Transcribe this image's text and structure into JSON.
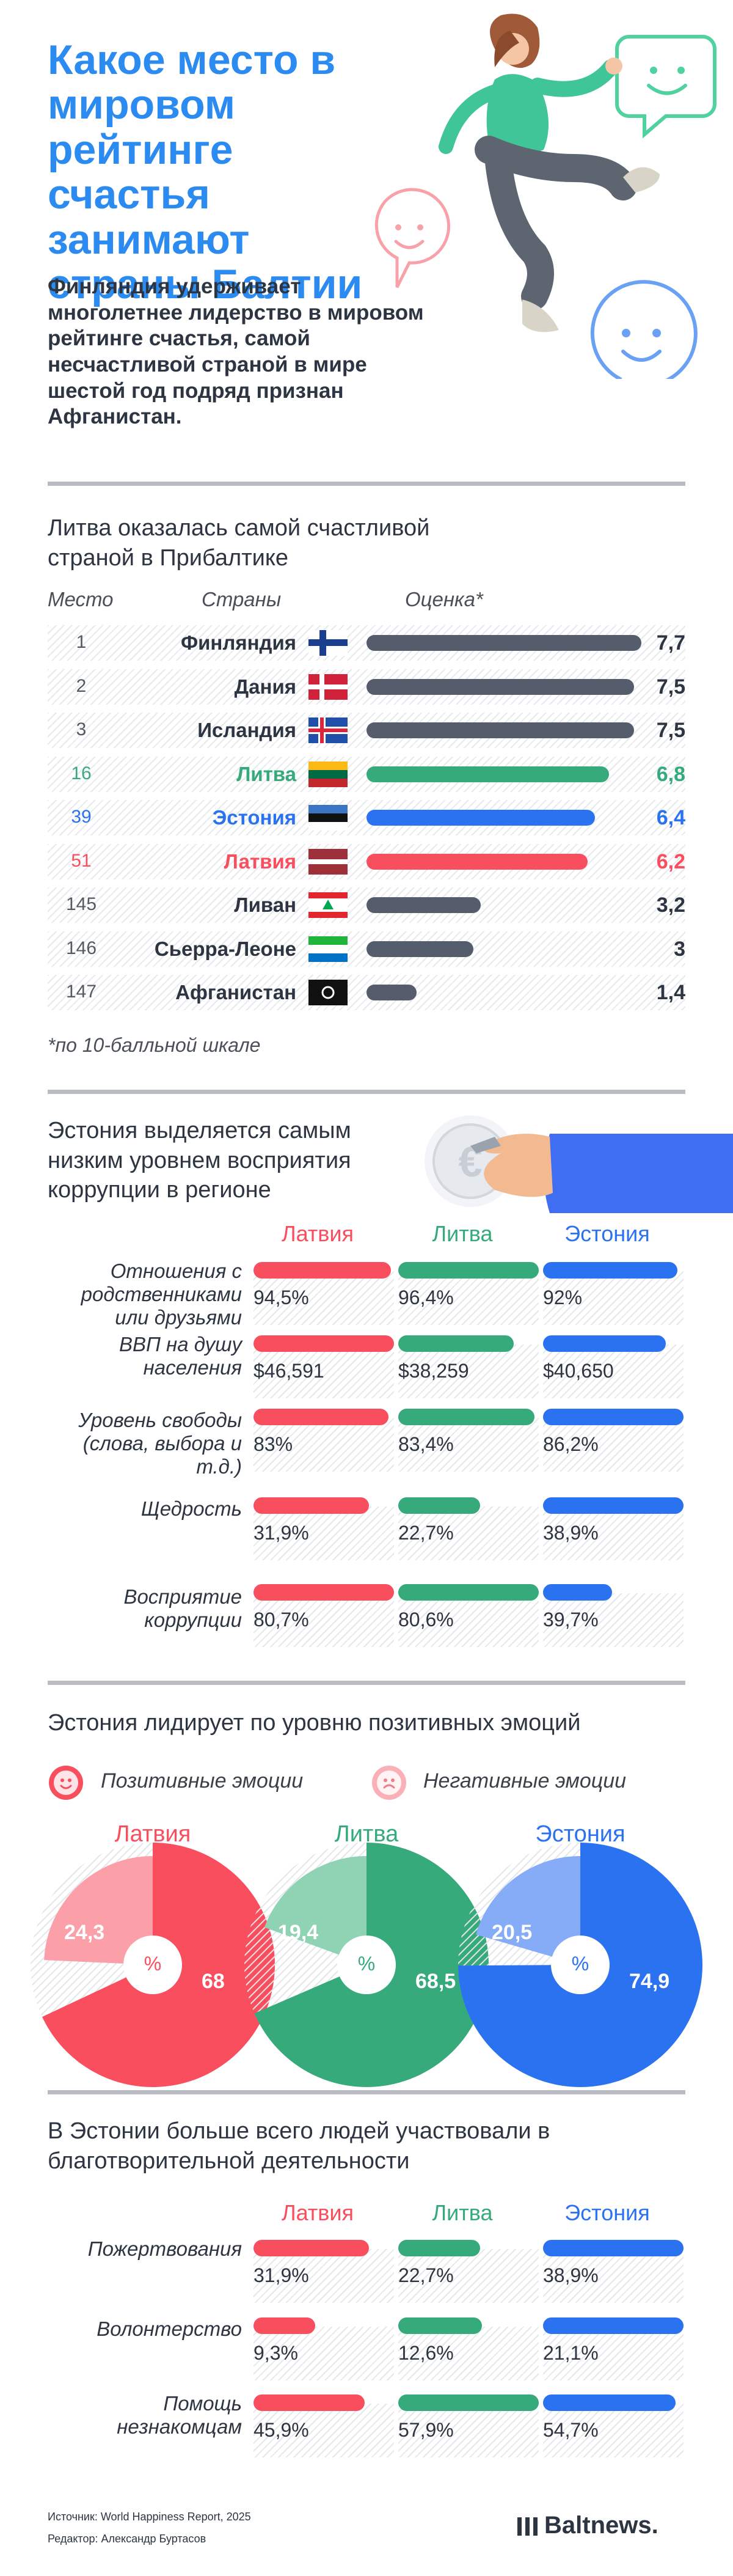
{
  "header": {
    "title": "Какое место в мировом рейтинге счастья занимают страны Балтии",
    "lead": "Финляндия удерживает многолетнее лидерство в мировом рейтинге счастья, самой несчастливой страной в мире шестой год подряд признан Афганистан."
  },
  "colors": {
    "latvia": "#f94e5e",
    "lithuania": "#36aa7a",
    "estonia": "#2b72f1",
    "neutral": "#555c6c",
    "title_blue": "#2c8bf1"
  },
  "ranking": {
    "title": "Литва оказалась самой счастливой страной в Прибалтике",
    "col_rank": "Место",
    "col_country": "Страны",
    "col_score": "Оценка*",
    "footnote": "*по 10-балльной шкале",
    "rows": [
      {
        "rank": "1",
        "country": "Финляндия",
        "score": "7,7",
        "flag": "finland-flag",
        "color": "#555c6c"
      },
      {
        "rank": "2",
        "country": "Дания",
        "score": "7,5",
        "flag": "denmark-flag",
        "color": "#555c6c"
      },
      {
        "rank": "3",
        "country": "Исландия",
        "score": "7,5",
        "flag": "iceland-flag",
        "color": "#555c6c"
      },
      {
        "rank": "16",
        "country": "Литва",
        "score": "6,8",
        "flag": "lithuania-flag",
        "color": "#36aa7a"
      },
      {
        "rank": "39",
        "country": "Эстония",
        "score": "6,4",
        "flag": "estonia-flag",
        "color": "#2b72f1"
      },
      {
        "rank": "51",
        "country": "Латвия",
        "score": "6,2",
        "flag": "latvia-flag",
        "color": "#f94e5e"
      },
      {
        "rank": "145",
        "country": "Ливан",
        "score": "3,2",
        "flag": "lebanon-flag",
        "color": "#555c6c"
      },
      {
        "rank": "146",
        "country": "Сьерра-Леоне",
        "score": "3",
        "flag": "sierra-leone-flag",
        "color": "#555c6c"
      },
      {
        "rank": "147",
        "country": "Афганистан",
        "score": "1,4",
        "flag": "afghanistan-flag",
        "color": "#555c6c"
      }
    ]
  },
  "corruption": {
    "title": "Эстония выделяется самым низким уровнем восприятия коррупции в регионе",
    "countries": [
      "Латвия",
      "Литва",
      "Эстония"
    ],
    "rows": [
      {
        "label": "Отношения с родственниками или друзьями",
        "values": [
          "94,5%",
          "96,4%",
          "92%"
        ]
      },
      {
        "label": "ВВП на душу населения",
        "values": [
          "$46,591",
          "$38,259",
          "$40,650"
        ]
      },
      {
        "label": "Уровень свободы (слова, выбора и т.д.)",
        "values": [
          "83%",
          "83,4%",
          "86,2%"
        ]
      },
      {
        "label": "Щедрость",
        "values": [
          "31,9%",
          "22,7%",
          "38,9%"
        ]
      },
      {
        "label": "Восприятие коррупции",
        "values": [
          "80,7%",
          "80,6%",
          "39,7%"
        ]
      }
    ]
  },
  "emotions": {
    "title": "Эстония лидирует по уровню позитивных эмоций",
    "legend_positive": "Позитивные эмоции",
    "legend_negative": "Негативные эмоции",
    "center_label": "%",
    "countries": [
      {
        "name": "Латвия",
        "positive": "68",
        "negative": "24,3"
      },
      {
        "name": "Литва",
        "positive": "68,5",
        "negative": "19,4"
      },
      {
        "name": "Эстония",
        "positive": "74,9",
        "negative": "20,5"
      }
    ]
  },
  "charity": {
    "title": "В Эстонии больше всего людей участвовали в благотворительной деятельности",
    "countries": [
      "Латвия",
      "Литва",
      "Эстония"
    ],
    "rows": [
      {
        "label": "Пожертвования",
        "values": [
          "31,9%",
          "22,7%",
          "38,9%"
        ]
      },
      {
        "label": "Волонтерство",
        "values": [
          "9,3%",
          "12,6%",
          "21,1%"
        ]
      },
      {
        "label": "Помощь незнакомцам",
        "values": [
          "45,9%",
          "57,9%",
          "54,7%"
        ]
      }
    ]
  },
  "footer": {
    "source": "Источник: World Happiness Report, 2025",
    "editor": "Редактор: Александр Буртасов",
    "brand": "Baltnews."
  },
  "chart_data": [
    {
      "type": "bar",
      "title": "Литва оказалась самой счастливой страной в Прибалтике",
      "categories": [
        "Финляндия",
        "Дания",
        "Исландия",
        "Литва",
        "Эстония",
        "Латвия",
        "Ливан",
        "Сьерра-Леоне",
        "Афганистан"
      ],
      "ranks": [
        1,
        2,
        3,
        16,
        39,
        51,
        145,
        146,
        147
      ],
      "values": [
        7.7,
        7.5,
        7.5,
        6.8,
        6.4,
        6.2,
        3.2,
        3,
        1.4
      ],
      "ylim": [
        0,
        8
      ]
    },
    {
      "type": "bar",
      "title": "Эстония выделяется самым низким уровнем восприятия коррупции в регионе",
      "categories": [
        "Отношения с родственниками или друзьями",
        "ВВП на душу населения",
        "Уровень свободы (слова, выбора и т.д.)",
        "Щедрость",
        "Восприятие коррупции"
      ],
      "series": [
        {
          "name": "Латвия",
          "values": [
            94.5,
            46591,
            83,
            31.9,
            80.7
          ]
        },
        {
          "name": "Литва",
          "values": [
            96.4,
            38259,
            83.4,
            22.7,
            80.6
          ]
        },
        {
          "name": "Эстония",
          "values": [
            92,
            40650,
            86.2,
            38.9,
            39.7
          ]
        }
      ]
    },
    {
      "type": "pie",
      "title": "Эстония лидирует по уровню позитивных эмоций",
      "series": [
        {
          "name": "Латвия",
          "values": [
            68,
            24.3
          ]
        },
        {
          "name": "Литва",
          "values": [
            68.5,
            19.4
          ]
        },
        {
          "name": "Эстония",
          "values": [
            74.9,
            20.5
          ]
        }
      ],
      "categories": [
        "Позитивные эмоции",
        "Негативные эмоции"
      ]
    },
    {
      "type": "bar",
      "title": "В Эстонии больше всего людей участвовали в благотворительной деятельности",
      "categories": [
        "Пожертвования",
        "Волонтерство",
        "Помощь незнакомцам"
      ],
      "series": [
        {
          "name": "Латвия",
          "values": [
            31.9,
            9.3,
            45.9
          ]
        },
        {
          "name": "Литва",
          "values": [
            22.7,
            12.6,
            57.9
          ]
        },
        {
          "name": "Эстония",
          "values": [
            38.9,
            21.1,
            54.7
          ]
        }
      ]
    }
  ]
}
